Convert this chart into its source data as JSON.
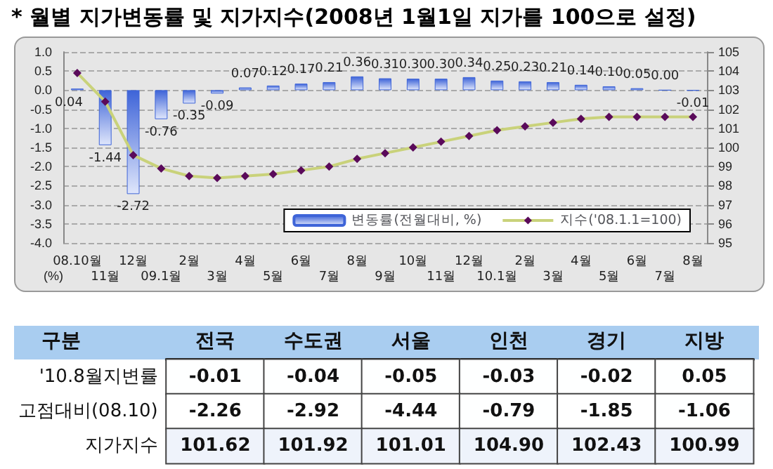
{
  "chart_data": [
    {
      "type": "bar",
      "title": "* 월별 지가변동률 및 지가지수(2008년 1월1일 지가를 100으로 설정)",
      "ylabel": "(%)",
      "categories": [
        "08.10월",
        "11월",
        "12월",
        "09.1월",
        "2월",
        "3월",
        "4월",
        "5월",
        "6월",
        "7월",
        "8월",
        "9월",
        "10월",
        "11월",
        "12월",
        "10.1월",
        "2월",
        "3월",
        "4월",
        "5월",
        "6월",
        "7월",
        "8월"
      ],
      "series": [
        {
          "name": "변동률(전월대비, %)",
          "type": "bar",
          "color": "#3e64d8",
          "values": [
            0.04,
            -1.44,
            -2.72,
            -0.76,
            -0.35,
            -0.09,
            0.07,
            0.12,
            0.17,
            0.21,
            0.36,
            0.31,
            0.3,
            0.3,
            0.34,
            0.25,
            0.23,
            0.21,
            0.14,
            0.1,
            0.05,
            0.0,
            -0.01
          ],
          "value_labels": [
            "0.04",
            "-1.44",
            "-2.72",
            "-0.76",
            "-0.35",
            "-0.09",
            "0.07",
            "0.12",
            "0.17",
            "0.21",
            "0.36",
            "0.31",
            "0.30",
            "0.30",
            "0.34",
            "0.25",
            "0.23",
            "0.21",
            "0.14",
            "0.10",
            "0.05",
            "0.00",
            "-0.01"
          ]
        },
        {
          "name": "지수('08.1.1=100)",
          "type": "line",
          "axis": "y2",
          "color": "#c9d27a",
          "marker": "diamond",
          "values": [
            103.9,
            102.4,
            99.6,
            98.9,
            98.5,
            98.4,
            98.5,
            98.6,
            98.8,
            99.0,
            99.4,
            99.7,
            100.0,
            100.3,
            100.6,
            100.9,
            101.1,
            101.3,
            101.5,
            101.6,
            101.6,
            101.6,
            101.6
          ]
        }
      ],
      "ylim": [
        -4,
        1
      ],
      "yticks": [
        {
          "value": -4,
          "label": "-4.0"
        },
        {
          "value": -3.5,
          "label": "-3.5"
        },
        {
          "value": -3,
          "label": "-3.0"
        },
        {
          "value": -2.5,
          "label": "-2.5"
        },
        {
          "value": -2,
          "label": "-2.0"
        },
        {
          "value": -1.5,
          "label": "-1.5"
        },
        {
          "value": -1,
          "label": "-1.0"
        },
        {
          "value": -0.5,
          "label": "-0.5"
        },
        {
          "value": 0,
          "label": "0.0"
        },
        {
          "value": 0.5,
          "label": "0.5"
        },
        {
          "value": 1,
          "label": "1.0"
        }
      ],
      "y2lim": [
        95,
        105
      ],
      "y2ticks": [
        95,
        96,
        97,
        98,
        99,
        100,
        101,
        102,
        103,
        104,
        105
      ],
      "grid": "y",
      "legend": "bottom right"
    },
    {
      "type": "heatmap",
      "ylabel": "구분",
      "categories": [
        "전국",
        "수도권",
        "서울",
        "인천",
        "경기",
        "지방"
      ],
      "y_categories": [
        "'10.8월지변률",
        "고점대비(08.10)",
        "지가지수"
      ],
      "cells": [
        [
          -0.01,
          -0.04,
          -0.05,
          -0.03,
          -0.02,
          0.05
        ],
        [
          -2.26,
          -2.92,
          -4.44,
          -0.79,
          -1.85,
          -1.06
        ],
        [
          101.62,
          101.92,
          101.01,
          104.9,
          102.43,
          100.99
        ]
      ],
      "cell_labels": [
        [
          "-0.01",
          "-0.04",
          "-0.05",
          "-0.03",
          "-0.02",
          "0.05"
        ],
        [
          "-2.26",
          "-2.92",
          "-4.44",
          "-0.79",
          "-1.85",
          "-1.06"
        ],
        [
          "101.62",
          "101.92",
          "101.01",
          "104.90",
          "102.43",
          "100.99"
        ]
      ]
    }
  ]
}
